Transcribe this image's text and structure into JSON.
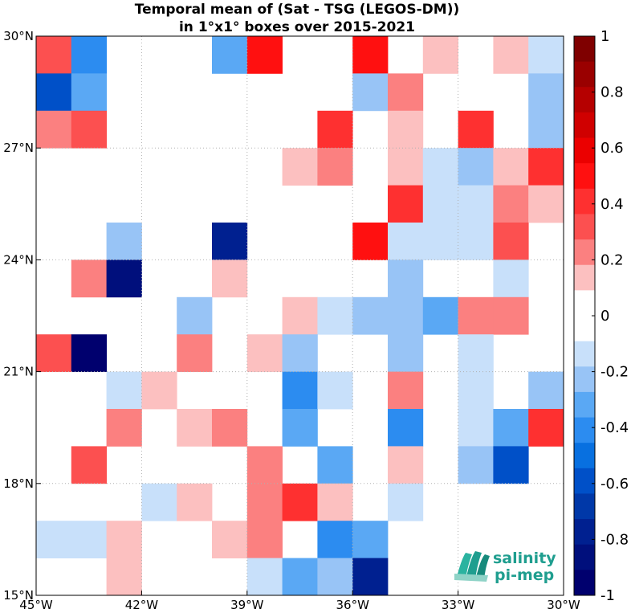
{
  "chart_data": {
    "type": "heatmap",
    "title_line1": "Temporal mean of (Sat - TSG (LEGOS-DM))",
    "title_line2": "in 1°x1° boxes over 2015-2021",
    "xlim": [
      -45,
      -30
    ],
    "ylim": [
      15,
      30
    ],
    "grid": true,
    "x_ticks": [
      {
        "value": -45,
        "label": "45°W"
      },
      {
        "value": -42,
        "label": "42°W"
      },
      {
        "value": -39,
        "label": "39°W"
      },
      {
        "value": -36,
        "label": "36°W"
      },
      {
        "value": -33,
        "label": "33°W"
      },
      {
        "value": -30,
        "label": "30°W"
      }
    ],
    "y_ticks": [
      {
        "value": 30,
        "label": "30°N"
      },
      {
        "value": 27,
        "label": "27°N"
      },
      {
        "value": 24,
        "label": "24°N"
      },
      {
        "value": 21,
        "label": "21°N"
      },
      {
        "value": 18,
        "label": "18°N"
      },
      {
        "value": 15,
        "label": "15°N"
      }
    ],
    "colorbar": {
      "range": [
        -1,
        1
      ],
      "tick_values": [
        1,
        0.8,
        0.6,
        0.4,
        0.2,
        0,
        -0.2,
        -0.4,
        -0.6,
        -0.8,
        -1
      ],
      "tick_labels": [
        "1",
        "0.8",
        "0.6",
        "0.4",
        "0.2",
        "0",
        "-0.2",
        "-0.4",
        "-0.6",
        "-0.8",
        "-1"
      ],
      "colors": [
        "#7f0000",
        "#9a0000",
        "#b50000",
        "#d00000",
        "#eb0000",
        "#ff1010",
        "#fe3030",
        "#fc5050",
        "#fb8080",
        "#fcc0c0",
        "#ffffff",
        "#ffffff",
        "#c8e0fa",
        "#98c4f6",
        "#5aa8f4",
        "#2c8cf0",
        "#0870e0",
        "#0050c8",
        "#0038a8",
        "#002090",
        "#000f7c",
        "#00006e"
      ]
    },
    "rows_lat_top": [
      30,
      29,
      28,
      27,
      26,
      25,
      24,
      23,
      22,
      21,
      20,
      19,
      18,
      17,
      16
    ],
    "cols_lon_left": [
      -45,
      -44,
      -43,
      -42,
      -41,
      -40,
      -39,
      -38,
      -37,
      -36,
      -35,
      -34,
      -33,
      -32,
      -31
    ],
    "values": [
      [
        0.35,
        -0.45,
        null,
        null,
        null,
        -0.35,
        0.5,
        null,
        null,
        0.5,
        null,
        0.15,
        null,
        0.15,
        -0.15
      ],
      [
        -0.55,
        -0.35,
        null,
        null,
        null,
        null,
        null,
        null,
        null,
        -0.25,
        0.25,
        null,
        null,
        null,
        -0.25
      ],
      [
        0.25,
        0.35,
        null,
        null,
        null,
        null,
        null,
        null,
        0.45,
        null,
        0.15,
        null,
        0.45,
        null,
        -0.25
      ],
      [
        null,
        null,
        null,
        null,
        null,
        null,
        null,
        0.15,
        0.25,
        null,
        0.15,
        -0.15,
        -0.25,
        0.15,
        0.45
      ],
      [
        null,
        null,
        null,
        null,
        null,
        null,
        null,
        null,
        null,
        null,
        0.45,
        -0.15,
        -0.15,
        0.25,
        0.15
      ],
      [
        null,
        null,
        -0.25,
        null,
        null,
        -0.75,
        null,
        null,
        null,
        0.5,
        -0.15,
        -0.15,
        -0.15,
        0.35,
        null
      ],
      [
        null,
        0.25,
        -0.85,
        null,
        null,
        0.15,
        null,
        null,
        null,
        null,
        -0.25,
        null,
        null,
        -0.15,
        null
      ],
      [
        null,
        null,
        null,
        null,
        -0.25,
        null,
        null,
        0.15,
        -0.15,
        -0.25,
        -0.25,
        -0.35,
        0.25,
        0.25,
        null
      ],
      [
        0.35,
        -0.95,
        null,
        null,
        0.25,
        null,
        0.15,
        -0.25,
        null,
        null,
        -0.25,
        null,
        -0.15,
        null,
        null
      ],
      [
        null,
        null,
        -0.15,
        0.15,
        null,
        null,
        null,
        -0.45,
        -0.15,
        null,
        0.25,
        null,
        -0.15,
        null,
        -0.25
      ],
      [
        null,
        null,
        0.25,
        null,
        0.15,
        0.25,
        null,
        -0.35,
        null,
        null,
        -0.45,
        null,
        -0.15,
        -0.35,
        0.45
      ],
      [
        null,
        0.35,
        null,
        null,
        null,
        null,
        0.25,
        null,
        -0.35,
        null,
        0.15,
        null,
        -0.25,
        -0.55,
        null
      ],
      [
        null,
        null,
        null,
        -0.15,
        0.15,
        null,
        0.25,
        0.45,
        0.15,
        null,
        -0.15,
        null,
        null,
        null,
        null
      ],
      [
        -0.15,
        -0.15,
        0.15,
        null,
        null,
        0.15,
        0.25,
        null,
        -0.45,
        -0.35,
        null,
        null,
        null,
        null,
        null
      ],
      [
        null,
        null,
        0.15,
        null,
        null,
        null,
        -0.15,
        -0.35,
        -0.25,
        -0.75,
        null,
        null,
        null,
        null,
        null
      ]
    ]
  },
  "logo": {
    "line1": "salinity",
    "line2": "pi-mep",
    "color": "#1f9e8f"
  }
}
